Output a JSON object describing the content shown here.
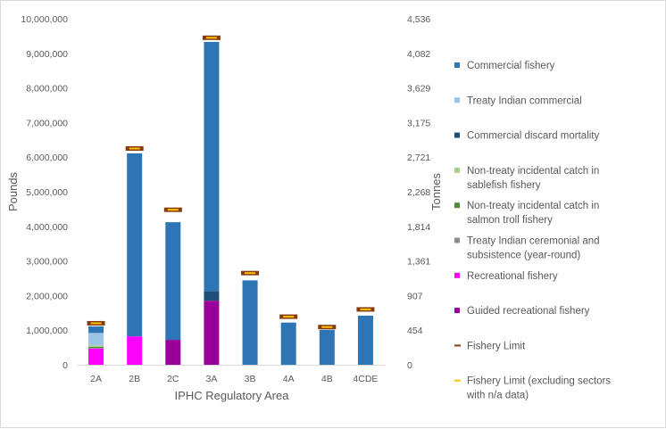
{
  "chart_data": {
    "type": "bar",
    "stacked": true,
    "xlabel": "IPHC Regulatory Area",
    "ylabel": "Pounds",
    "y2label": "Tonnes",
    "categories": [
      "2A",
      "2B",
      "2C",
      "3A",
      "3B",
      "4A",
      "4B",
      "4CDE"
    ],
    "ylim": [
      0,
      10000000
    ],
    "yticks": [
      "0",
      "1,000,000",
      "2,000,000",
      "3,000,000",
      "4,000,000",
      "5,000,000",
      "6,000,000",
      "7,000,000",
      "8,000,000",
      "9,000,000",
      "10,000,000"
    ],
    "y2ticks": [
      "0",
      "454",
      "907",
      "1,361",
      "1,814",
      "2,268",
      "2,721",
      "3,175",
      "3,629",
      "4,082",
      "4,536"
    ],
    "grid": false,
    "legend_position": "right",
    "series": [
      {
        "name": "Guided recreational fishery",
        "color": "#990099",
        "values": [
          0,
          0,
          720000,
          1850000,
          0,
          0,
          0,
          0
        ]
      },
      {
        "name": "Recreational fishery",
        "color": "#ff00ff",
        "values": [
          470000,
          820000,
          0,
          0,
          0,
          0,
          0,
          0
        ]
      },
      {
        "name": "Treaty Indian ceremonial and subsistence (year-round)",
        "color": "#8c8c8c",
        "values": [
          20000,
          0,
          0,
          0,
          0,
          0,
          0,
          0
        ]
      },
      {
        "name": "Non-treaty incidental catch in salmon troll fishery",
        "color": "#4e8b3a",
        "values": [
          30000,
          0,
          0,
          0,
          0,
          0,
          0,
          0
        ]
      },
      {
        "name": "Non-treaty incidental catch in sablefish fishery",
        "color": "#a8d08d",
        "values": [
          40000,
          0,
          0,
          0,
          0,
          0,
          0,
          0
        ]
      },
      {
        "name": "Commercial discard mortality",
        "color": "#1f4e79",
        "values": [
          0,
          0,
          0,
          280000,
          0,
          0,
          0,
          0
        ]
      },
      {
        "name": "Treaty Indian commercial",
        "color": "#9dc3e6",
        "values": [
          360000,
          0,
          0,
          0,
          0,
          0,
          0,
          0
        ]
      },
      {
        "name": "Commercial fishery",
        "color": "#2e75b6",
        "values": [
          190000,
          5290000,
          3400000,
          7200000,
          2440000,
          1220000,
          1010000,
          1420000
        ]
      }
    ],
    "fishery_limit": {
      "name": "Fishery Limit",
      "color": "#843c0c",
      "values": [
        1200000,
        6250000,
        4480000,
        9450000,
        2650000,
        1390000,
        1090000,
        1600000
      ]
    },
    "fishery_limit_excl": {
      "name": "Fishery Limit (excluding sectors with n/a data)",
      "color": "#ffc000",
      "values": [
        1200000,
        6250000,
        4480000,
        9450000,
        2650000,
        1390000,
        1090000,
        1600000
      ]
    },
    "legend": [
      {
        "label": "Commercial fishery",
        "color": "#2e75b6",
        "kind": "box"
      },
      {
        "label": "Treaty Indian commercial",
        "color": "#9dc3e6",
        "kind": "box"
      },
      {
        "label": "Commercial discard mortality",
        "color": "#1f4e79",
        "kind": "box"
      },
      {
        "label": "Non-treaty incidental catch in sablefish fishery",
        "color": "#a8d08d",
        "kind": "box"
      },
      {
        "label": "Non-treaty incidental catch in salmon troll fishery",
        "color": "#4e8b3a",
        "kind": "box"
      },
      {
        "label": "Treaty Indian ceremonial and subsistence (year-round)",
        "color": "#8c8c8c",
        "kind": "box"
      },
      {
        "label": "Recreational fishery",
        "color": "#ff00ff",
        "kind": "box"
      },
      {
        "label": "Guided recreational fishery",
        "color": "#990099",
        "kind": "box"
      },
      {
        "label": "Fishery Limit",
        "color": "#843c0c",
        "kind": "line"
      },
      {
        "label": "Fishery Limit (excluding sectors with n/a data)",
        "color": "#ffc000",
        "kind": "line"
      }
    ]
  }
}
